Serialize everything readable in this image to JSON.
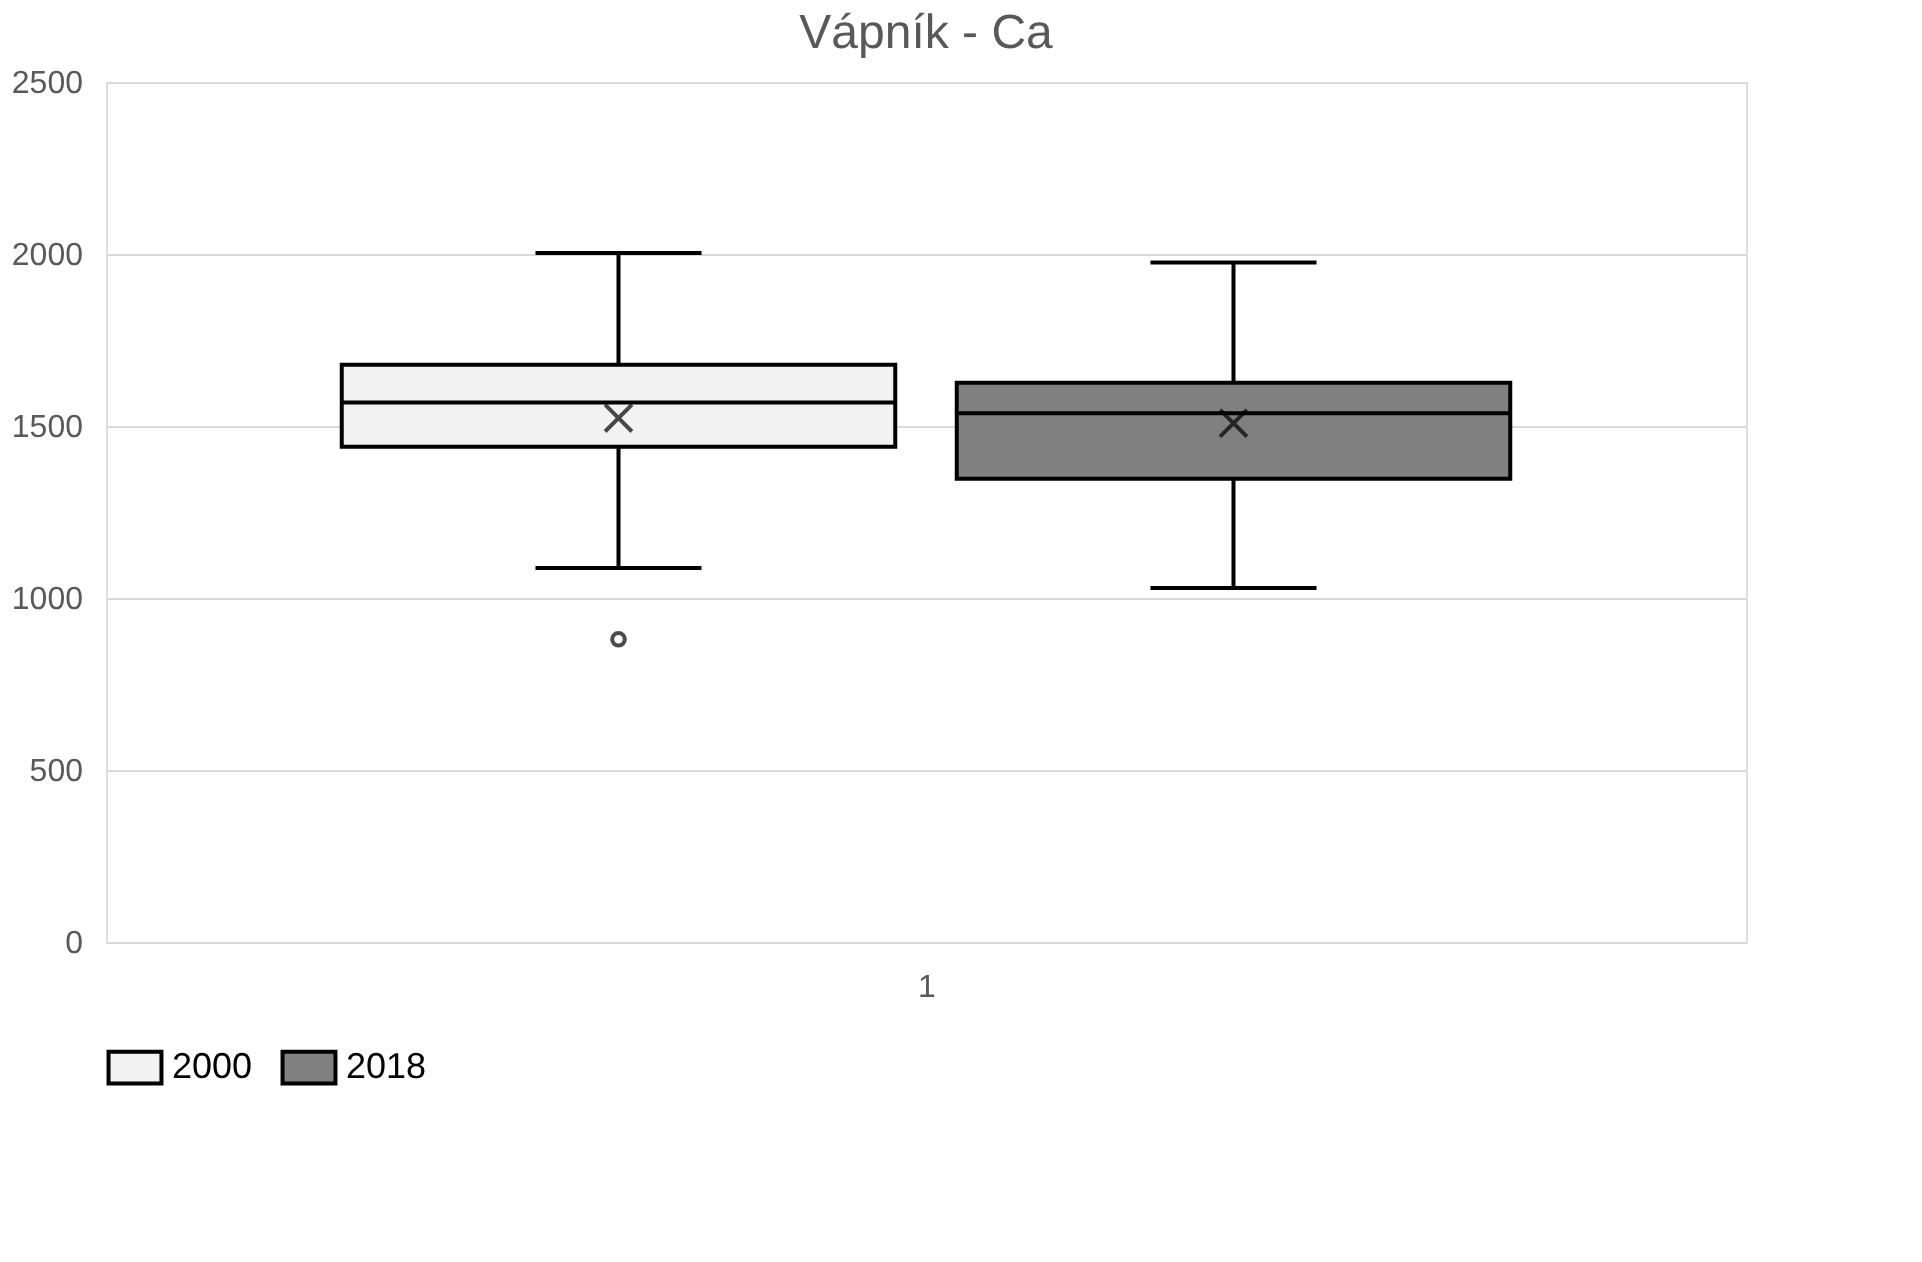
{
  "chart_data": {
    "type": "box",
    "title": "Vápník - Ca",
    "categories": [
      "1"
    ],
    "series": [
      {
        "name": "2000",
        "color": "#f2f2f2",
        "boxes": [
          {
            "low": 1087,
            "q1": 1440,
            "median": 1568,
            "q3": 1678,
            "high": 2003,
            "mean": 1523,
            "outliers": [
              880
            ]
          }
        ]
      },
      {
        "name": "2018",
        "color": "#808080",
        "boxes": [
          {
            "low": 1029,
            "q1": 1347,
            "median": 1537,
            "q3": 1626,
            "high": 1975,
            "mean": 1508
          }
        ]
      }
    ],
    "ylim": [
      0,
      2500
    ],
    "yticks": [
      0,
      500,
      1000,
      1500,
      2000,
      2500
    ],
    "grid": "y",
    "legend": "bottom left",
    "marker": "cross"
  }
}
